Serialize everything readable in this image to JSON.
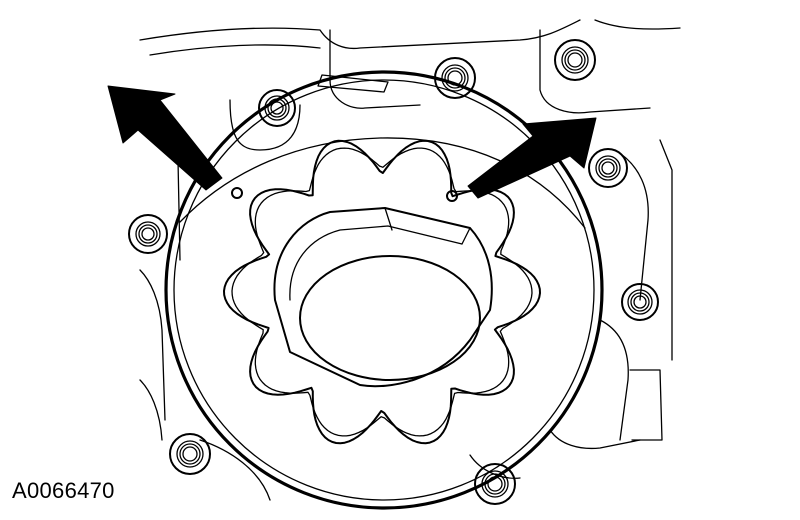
{
  "figure": {
    "id_label": "A0066470",
    "colors": {
      "line": "#000000",
      "background": "#ffffff"
    },
    "callouts": [
      {
        "name": "left-alignment-mark",
        "icon": "arrow-icon"
      },
      {
        "name": "right-alignment-mark",
        "icon": "arrow-icon"
      }
    ]
  }
}
